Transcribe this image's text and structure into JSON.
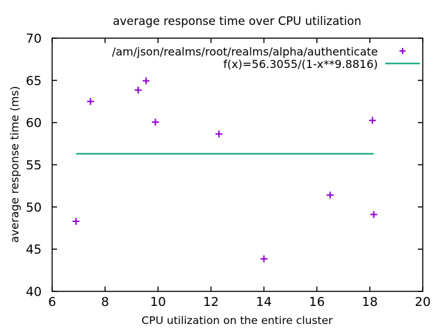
{
  "chart_data": {
    "type": "scatter",
    "title": "average response time over CPU utilization",
    "xlabel": "CPU utilization on the entire cluster",
    "ylabel": "average response time (ms)",
    "xlim": [
      6,
      20
    ],
    "ylim": [
      40,
      70
    ],
    "xticks": [
      6,
      8,
      10,
      12,
      14,
      16,
      18,
      20
    ],
    "yticks": [
      40,
      45,
      50,
      55,
      60,
      65,
      70
    ],
    "grid": false,
    "legend_position": "top-right-inside",
    "colors": {
      "border": "#000000",
      "text": "#000000",
      "background": "#ffffff",
      "scatter": "#9400d3",
      "fit_line": "#009e73"
    },
    "series": [
      {
        "name": "/am/json/realms/root/realms/alpha/authenticate",
        "type": "scatter",
        "marker": "plus",
        "color": "#9400d3",
        "points": [
          [
            6.9,
            48.3
          ],
          [
            7.45,
            62.5
          ],
          [
            9.25,
            63.85
          ],
          [
            9.55,
            64.95
          ],
          [
            9.9,
            60.05
          ],
          [
            12.3,
            58.65
          ],
          [
            14.0,
            43.85
          ],
          [
            16.5,
            51.4
          ],
          [
            18.1,
            60.25
          ],
          [
            18.15,
            49.1
          ]
        ]
      },
      {
        "name": "f(x)=56.3055/(1-x**9.8816)",
        "type": "line",
        "color": "#009e73",
        "points": [
          [
            6.9,
            56.3
          ],
          [
            18.15,
            56.3
          ]
        ]
      }
    ]
  }
}
